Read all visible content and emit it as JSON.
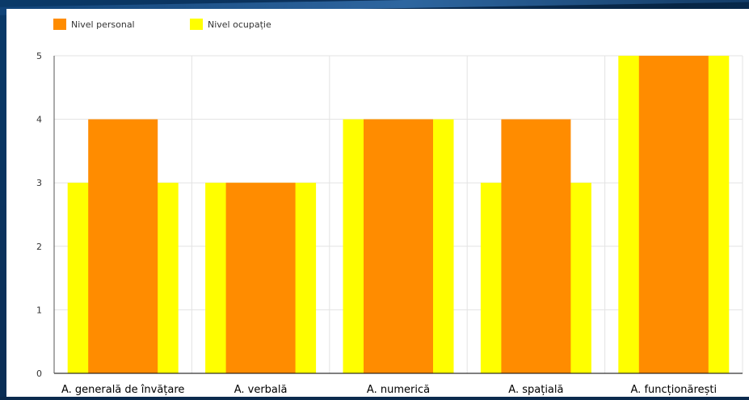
{
  "chart_data": {
    "type": "bar",
    "categories": [
      "A. generală de învățare",
      "A. verbală",
      "A. numerică",
      "A. spațială",
      "A. funcționărești"
    ],
    "series": [
      {
        "name": "Nivel ocupație",
        "values": [
          3,
          3,
          4,
          3,
          5
        ],
        "color": "#ffff00"
      },
      {
        "name": "Nivel personal",
        "values": [
          4,
          3,
          4,
          4,
          5
        ],
        "color": "#ff8c00"
      }
    ],
    "ylim": [
      0,
      5
    ],
    "yticks": [
      "0",
      "1",
      "2",
      "3",
      "4",
      "5"
    ],
    "grid": true,
    "legend_position": "top-left",
    "legend": [
      {
        "label": "Nivel personal",
        "color": "#ff8c00"
      },
      {
        "label": "Nivel ocupație",
        "color": "#ffff00"
      }
    ]
  }
}
